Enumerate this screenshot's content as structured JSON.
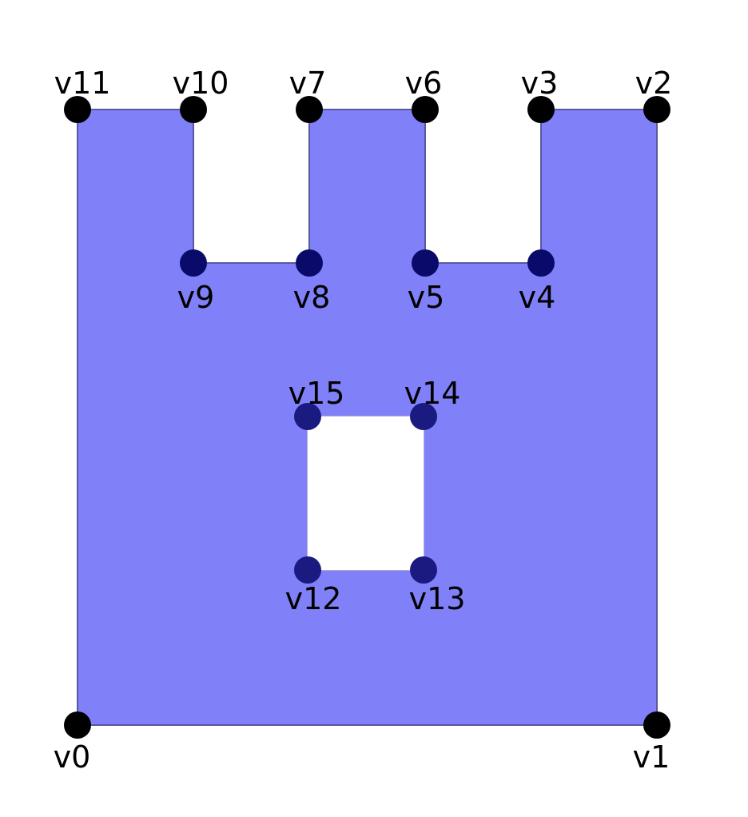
{
  "diagram": {
    "colors": {
      "fill": "#8080f8",
      "outline": "#5858a0",
      "vertex": "#000000",
      "vertex_inner": "#0a0a6a",
      "hole_vertex": "#1a1a80",
      "label": "#000000",
      "background": "#ffffff"
    },
    "vertices": [
      {
        "id": "v0",
        "label": "v0"
      },
      {
        "id": "v1",
        "label": "v1"
      },
      {
        "id": "v2",
        "label": "v2"
      },
      {
        "id": "v3",
        "label": "v3"
      },
      {
        "id": "v4",
        "label": "v4"
      },
      {
        "id": "v5",
        "label": "v5"
      },
      {
        "id": "v6",
        "label": "v6"
      },
      {
        "id": "v7",
        "label": "v7"
      },
      {
        "id": "v8",
        "label": "v8"
      },
      {
        "id": "v9",
        "label": "v9"
      },
      {
        "id": "v10",
        "label": "v10"
      },
      {
        "id": "v11",
        "label": "v11"
      },
      {
        "id": "v12",
        "label": "v12"
      },
      {
        "id": "v13",
        "label": "v13"
      },
      {
        "id": "v14",
        "label": "v14"
      },
      {
        "id": "v15",
        "label": "v15"
      }
    ],
    "outer_boundary": [
      "v0",
      "v1",
      "v2",
      "v3",
      "v4",
      "v5",
      "v6",
      "v7",
      "v8",
      "v9",
      "v10",
      "v11"
    ],
    "hole": [
      "v12",
      "v13",
      "v14",
      "v15"
    ]
  }
}
